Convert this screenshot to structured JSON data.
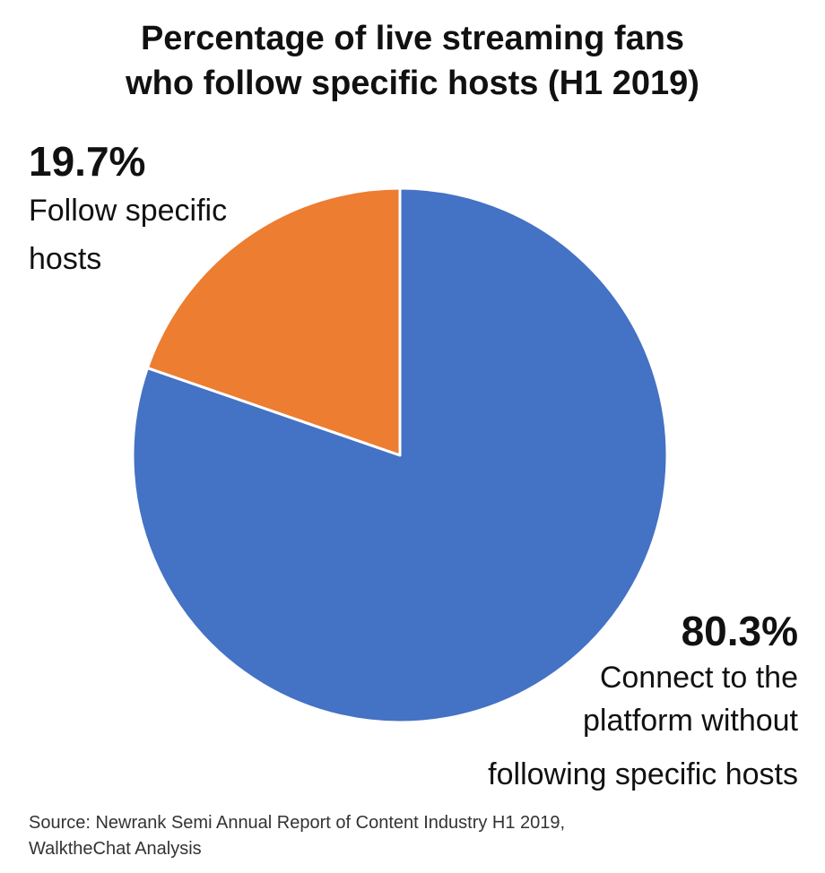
{
  "chart_data": {
    "type": "pie",
    "title_lines": [
      "Percentage of live streaming fans",
      "who follow specific hosts (H1 2019)"
    ],
    "slices": [
      {
        "label": "Follow specific hosts",
        "label_lines": [
          "Follow specific",
          "hosts"
        ],
        "value": 19.7,
        "value_label": "19.7%",
        "color": "#ED7D31"
      },
      {
        "label": "Connect to the platform without following specific hosts",
        "label_lines": [
          "Connect to the",
          "platform without",
          "following specific hosts"
        ],
        "value": 80.3,
        "value_label": "80.3%",
        "color": "#4472C4"
      }
    ],
    "start_angle": "12 o'clock, counter-clockwise for first slice",
    "legend": "none",
    "source_lines": [
      "Source: Newrank Semi Annual Report of Content Industry H1 2019,",
      "WalktheChat Analysis"
    ]
  }
}
